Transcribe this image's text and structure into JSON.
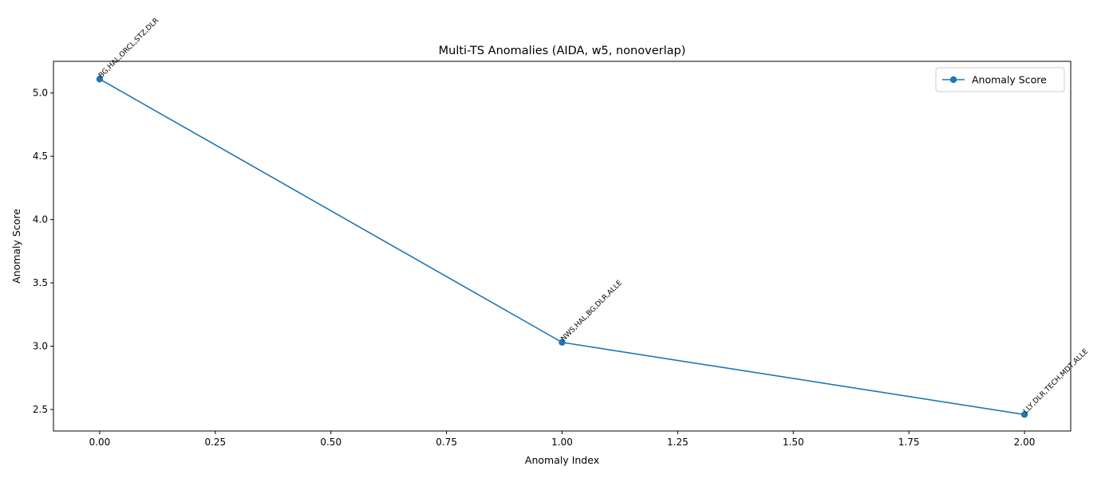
{
  "chart_data": {
    "type": "line",
    "title": "Multi-TS Anomalies (AIDA, w5, nonoverlap)",
    "xlabel": "Anomaly Index",
    "ylabel": "Anomaly Score",
    "xlim": [
      -0.1,
      2.1
    ],
    "ylim": [
      2.33,
      5.25
    ],
    "x_ticks": [
      0.0,
      0.25,
      0.5,
      0.75,
      1.0,
      1.25,
      1.5,
      1.75,
      2.0
    ],
    "x_tick_labels": [
      "0.00",
      "0.25",
      "0.50",
      "0.75",
      "1.00",
      "1.25",
      "1.50",
      "1.75",
      "2.00"
    ],
    "y_ticks": [
      2.5,
      3.0,
      3.5,
      4.0,
      4.5,
      5.0
    ],
    "y_tick_labels": [
      "2.5",
      "3.0",
      "3.5",
      "4.0",
      "4.5",
      "5.0"
    ],
    "grid": false,
    "legend_position": "top-right",
    "series": [
      {
        "name": "Anomaly Score",
        "color": "#1f77b4",
        "marker": "circle",
        "x": [
          0,
          1,
          2
        ],
        "y": [
          5.11,
          3.03,
          2.46
        ]
      }
    ],
    "annotations": [
      {
        "x": 0,
        "y": 5.11,
        "text": "BG,HAL,ORCL,STZ,DLR"
      },
      {
        "x": 1,
        "y": 3.03,
        "text": "NWS,HAL,BG,DLR,ALLE"
      },
      {
        "x": 2,
        "y": 2.46,
        "text": "LLY,DLR,TECH,MDT,ALLE"
      }
    ]
  }
}
